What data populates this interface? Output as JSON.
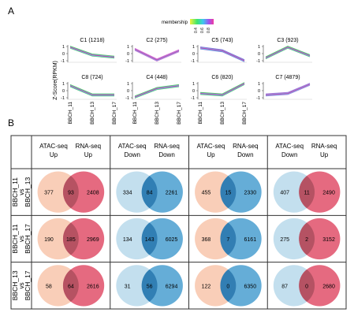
{
  "panel_a": {
    "label": "A",
    "legend_title": "membership",
    "legend_ticks": [
      "0.4",
      "0.6",
      "0.8"
    ],
    "y_axis_label": "Z-Score(RPKM)",
    "y_ticks": [
      "1",
      "0",
      "-1"
    ],
    "x_labels": [
      "BBCH_11",
      "BBCH_13",
      "BBCH_17"
    ],
    "clusters": [
      {
        "title": "C1 (1218)",
        "color": "#3cb44b",
        "trend": [
          0.9,
          -0.2,
          -0.5
        ]
      },
      {
        "title": "C2 (275)",
        "color": "#e040c8",
        "trend": [
          0.6,
          -0.9,
          0.4
        ]
      },
      {
        "title": "C5 (743)",
        "color": "#6a5acd",
        "trend": [
          0.8,
          0.4,
          -1.0
        ]
      },
      {
        "title": "C3 (923)",
        "color": "#3cb44b",
        "trend": [
          -0.6,
          0.9,
          -0.3
        ]
      },
      {
        "title": "C8 (724)",
        "color": "#3cb44b",
        "trend": [
          0.7,
          -0.6,
          -0.6
        ]
      },
      {
        "title": "C4 (448)",
        "color": "#3cb44b",
        "trend": [
          -0.9,
          0.3,
          0.7
        ]
      },
      {
        "title": "C6 (820)",
        "color": "#3cb44b",
        "trend": [
          -0.4,
          -0.6,
          1.0
        ]
      },
      {
        "title": "C7 (4879)",
        "color": "#9b59d0",
        "trend": [
          -0.6,
          -0.4,
          0.9
        ]
      }
    ]
  },
  "panel_b": {
    "label": "B",
    "column_headers": [
      {
        "left": "ATAC-seq\nUp",
        "right": "RNA-seq\nUp"
      },
      {
        "left": "ATAC-seq\nDown",
        "right": "RNA-seq\nDown"
      },
      {
        "left": "ATAC-seq\nUp",
        "right": "RNA-seq\nDown"
      },
      {
        "left": "ATAC-seq\nDown",
        "right": "RNA-seq\nUp"
      }
    ],
    "row_labels": [
      {
        "a": "BBCH_11",
        "vs": "vs",
        "b": "BBCH_13"
      },
      {
        "a": "BBCH_11",
        "vs": "vs",
        "b": "BBCH_17"
      },
      {
        "a": "BBCH_13",
        "vs": "vs",
        "b": "BBCH_17"
      }
    ],
    "colors": {
      "up_left": "#f8c9b0",
      "down_left": "#bcdcec",
      "up_right": "#e0506a",
      "down_right": "#4a9fd0",
      "overlap_warm": "#b05060",
      "overlap_cool": "#2c7ab0"
    },
    "venns": [
      [
        {
          "left": "377",
          "overlap": "93",
          "right": "2408"
        },
        {
          "left": "334",
          "overlap": "84",
          "right": "2261"
        },
        {
          "left": "455",
          "overlap": "15",
          "right": "2330"
        },
        {
          "left": "407",
          "overlap": "11",
          "right": "2490"
        }
      ],
      [
        {
          "left": "190",
          "overlap": "185",
          "right": "2969"
        },
        {
          "left": "134",
          "overlap": "143",
          "right": "6025"
        },
        {
          "left": "368",
          "overlap": "7",
          "right": "6161"
        },
        {
          "left": "275",
          "overlap": "2",
          "right": "3152"
        }
      ],
      [
        {
          "left": "58",
          "overlap": "64",
          "right": "2616"
        },
        {
          "left": "31",
          "overlap": "56",
          "right": "6294"
        },
        {
          "left": "122",
          "overlap": "0",
          "right": "6350"
        },
        {
          "left": "87",
          "overlap": "0",
          "right": "2680"
        }
      ]
    ]
  }
}
